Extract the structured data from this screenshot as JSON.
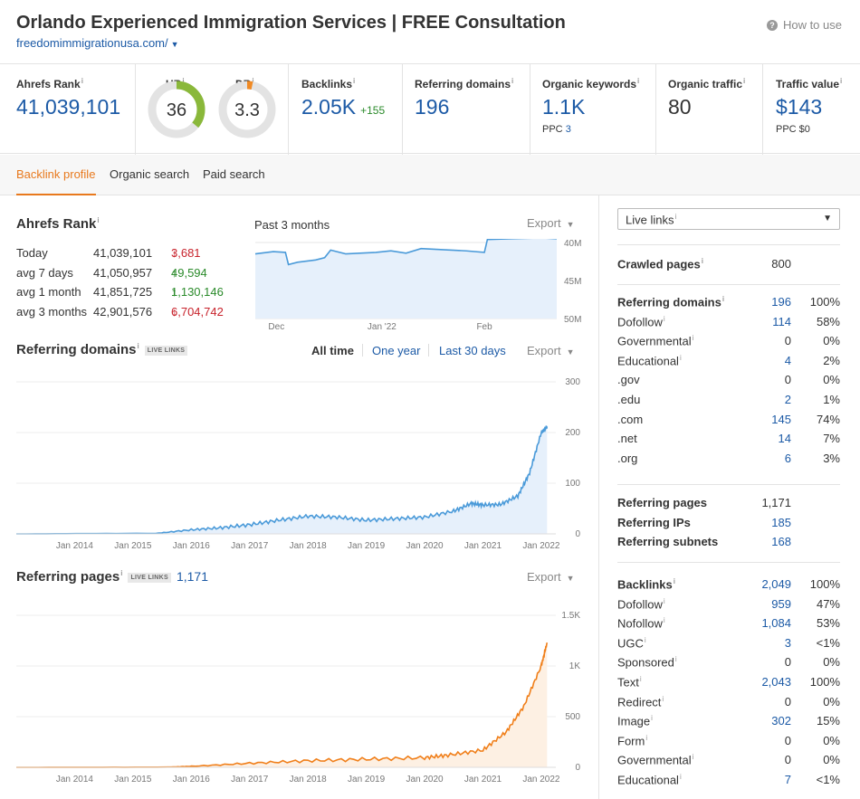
{
  "header": {
    "title": "Orlando Experienced Immigration Services | FREE Consultation",
    "url": "freedomimmigrationusa.com/",
    "help_label": "How to use"
  },
  "metrics": {
    "ahrefs_rank": {
      "label": "Ahrefs Rank",
      "value": "41,039,101"
    },
    "ur": {
      "label": "UR",
      "value": "36",
      "level": 0.36,
      "color": "#8ab83a"
    },
    "dr": {
      "label": "DR",
      "value": "3.3",
      "level": 0.033,
      "color": "#f08a24"
    },
    "backlinks": {
      "label": "Backlinks",
      "value": "2.05K",
      "delta": "+155"
    },
    "referring_domains": {
      "label": "Referring domains",
      "value": "196"
    },
    "organic_keywords": {
      "label": "Organic keywords",
      "value": "1.1K",
      "sub_label": "PPC",
      "sub_value": "3"
    },
    "organic_traffic": {
      "label": "Organic traffic",
      "value": "80"
    },
    "traffic_value": {
      "label": "Traffic value",
      "value": "$143",
      "sub": "PPC $0"
    }
  },
  "tabs": [
    "Backlink profile",
    "Organic search",
    "Paid search"
  ],
  "ahrefs_rank_section": {
    "title": "Ahrefs Rank",
    "period": "Past 3 months",
    "export": "Export",
    "rows": [
      {
        "label": "Today",
        "value": "41,039,101",
        "change": "3,681",
        "dir": "down"
      },
      {
        "label": "avg 7 days",
        "value": "41,050,957",
        "change": "49,594",
        "dir": "up"
      },
      {
        "label": "avg 1 month",
        "value": "41,851,725",
        "change": "1,130,146",
        "dir": "up"
      },
      {
        "label": "avg 3 months",
        "value": "42,901,576",
        "change": "6,704,742",
        "dir": "down"
      }
    ]
  },
  "referring_domains_section": {
    "title": "Referring domains",
    "badge": "LIVE LINKS",
    "filters": [
      "All time",
      "One year",
      "Last 30 days"
    ],
    "export": "Export"
  },
  "referring_pages_section": {
    "title": "Referring pages",
    "badge": "LIVE LINKS",
    "count": "1,171",
    "export": "Export"
  },
  "chart_data": [
    {
      "type": "line",
      "name": "ahrefs-rank",
      "x_ticks": [
        "Dec",
        "Jan '22",
        "Feb"
      ],
      "y_ticks": [
        "40M",
        "45M",
        "50M"
      ],
      "ylim": [
        50000000,
        40000000
      ],
      "color": "#4a9ad9",
      "points": [
        [
          0,
          41.5
        ],
        [
          0.06,
          41.2
        ],
        [
          0.1,
          41.3
        ],
        [
          0.11,
          42.9
        ],
        [
          0.14,
          42.6
        ],
        [
          0.2,
          42.3
        ],
        [
          0.23,
          42.0
        ],
        [
          0.25,
          41.0
        ],
        [
          0.3,
          41.5
        ],
        [
          0.4,
          41.3
        ],
        [
          0.45,
          41.1
        ],
        [
          0.5,
          41.4
        ],
        [
          0.55,
          40.8
        ],
        [
          0.6,
          40.9
        ],
        [
          0.7,
          41.1
        ],
        [
          0.76,
          41.3
        ],
        [
          0.77,
          39.6
        ],
        [
          0.85,
          39.5
        ],
        [
          0.95,
          39.4
        ],
        [
          1.0,
          39.5
        ]
      ]
    },
    {
      "type": "area",
      "name": "referring-domains",
      "x_ticks": [
        "Jan 2014",
        "Jan 2015",
        "Jan 2016",
        "Jan 2017",
        "Jan 2018",
        "Jan 2019",
        "Jan 2020",
        "Jan 2021",
        "Jan 2022"
      ],
      "y_ticks": [
        "300",
        "200",
        "100",
        "0"
      ],
      "ylim": [
        0,
        300
      ],
      "color": "#4a9ad9",
      "fill": "#e6f0fb",
      "points": [
        [
          2013.0,
          0
        ],
        [
          2015.4,
          1
        ],
        [
          2016.0,
          8
        ],
        [
          2016.5,
          12
        ],
        [
          2017.0,
          18
        ],
        [
          2017.5,
          27
        ],
        [
          2018.0,
          35
        ],
        [
          2018.5,
          33
        ],
        [
          2019.0,
          27
        ],
        [
          2019.5,
          30
        ],
        [
          2020.0,
          33
        ],
        [
          2020.5,
          45
        ],
        [
          2020.8,
          60
        ],
        [
          2021.0,
          57
        ],
        [
          2021.3,
          58
        ],
        [
          2021.6,
          75
        ],
        [
          2021.8,
          120
        ],
        [
          2022.0,
          200
        ],
        [
          2022.1,
          212
        ]
      ]
    },
    {
      "type": "area",
      "name": "referring-pages",
      "x_ticks": [
        "Jan 2014",
        "Jan 2015",
        "Jan 2016",
        "Jan 2017",
        "Jan 2018",
        "Jan 2019",
        "Jan 2020",
        "Jan 2021",
        "Jan 2022"
      ],
      "y_ticks": [
        "1.5K",
        "1K",
        "500",
        "0"
      ],
      "ylim": [
        0,
        1500
      ],
      "color": "#f07f1a",
      "fill": "#fdf0e3",
      "points": [
        [
          2013.0,
          0
        ],
        [
          2015.6,
          2
        ],
        [
          2016.0,
          10
        ],
        [
          2017.0,
          40
        ],
        [
          2018.0,
          65
        ],
        [
          2019.0,
          80
        ],
        [
          2020.0,
          95
        ],
        [
          2020.4,
          120
        ],
        [
          2021.0,
          170
        ],
        [
          2021.4,
          350
        ],
        [
          2021.7,
          600
        ],
        [
          2022.0,
          1000
        ],
        [
          2022.1,
          1230
        ]
      ]
    }
  ],
  "right_panel": {
    "select": "Live links",
    "crawled": {
      "label": "Crawled pages",
      "value": "800"
    },
    "domains": [
      {
        "label": "Referring domains",
        "value": "196",
        "pct": "100%",
        "bold": true
      },
      {
        "label": "Dofollow",
        "value": "114",
        "pct": "58%"
      },
      {
        "label": "Governmental",
        "value": "0",
        "pct": "0%"
      },
      {
        "label": "Educational",
        "value": "4",
        "pct": "2%"
      },
      {
        "label": ".gov",
        "value": "0",
        "pct": "0%"
      },
      {
        "label": ".edu",
        "value": "2",
        "pct": "1%"
      },
      {
        "label": ".com",
        "value": "145",
        "pct": "74%"
      },
      {
        "label": ".net",
        "value": "14",
        "pct": "7%"
      },
      {
        "label": ".org",
        "value": "6",
        "pct": "3%"
      }
    ],
    "pages": [
      {
        "label": "Referring pages",
        "value": "1,171"
      },
      {
        "label": "Referring IPs",
        "value": "185"
      },
      {
        "label": "Referring subnets",
        "value": "168"
      }
    ],
    "backlinks": [
      {
        "label": "Backlinks",
        "value": "2,049",
        "pct": "100%",
        "bold": true
      },
      {
        "label": "Dofollow",
        "value": "959",
        "pct": "47%"
      },
      {
        "label": "Nofollow",
        "value": "1,084",
        "pct": "53%"
      },
      {
        "label": "UGC",
        "value": "3",
        "pct": "<1%"
      },
      {
        "label": "Sponsored",
        "value": "0",
        "pct": "0%"
      },
      {
        "label": "Text",
        "value": "2,043",
        "pct": "100%"
      },
      {
        "label": "Redirect",
        "value": "0",
        "pct": "0%"
      },
      {
        "label": "Image",
        "value": "302",
        "pct": "15%"
      },
      {
        "label": "Form",
        "value": "0",
        "pct": "0%"
      },
      {
        "label": "Governmental",
        "value": "0",
        "pct": "0%"
      },
      {
        "label": "Educational",
        "value": "7",
        "pct": "<1%"
      }
    ]
  }
}
